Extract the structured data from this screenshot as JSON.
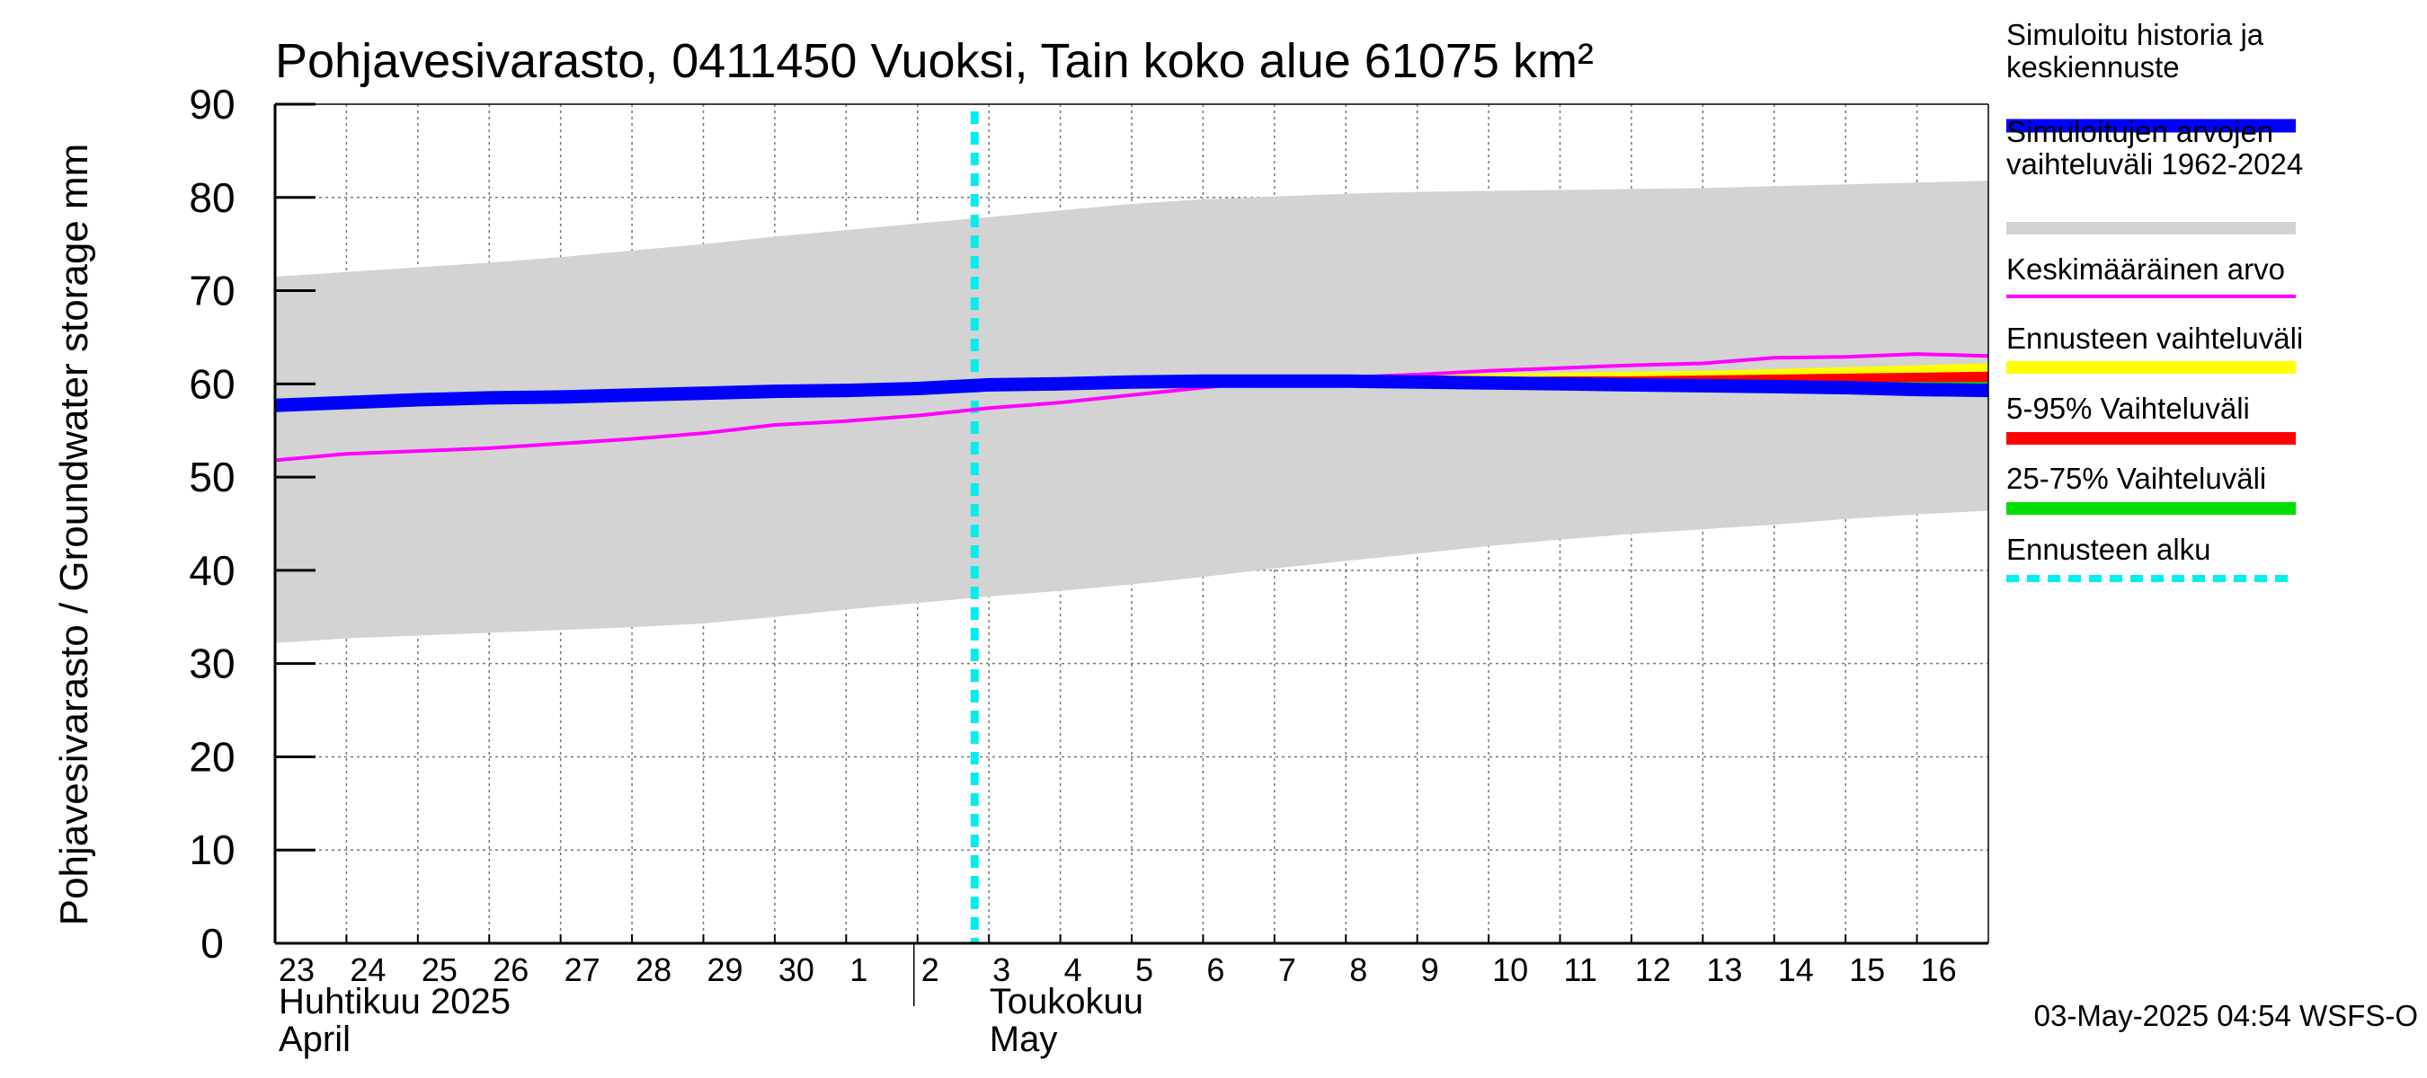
{
  "chart_data": {
    "type": "line",
    "title": "Pohjavesivarasto, 0411450 Vuoksi, Tain koko alue 61075 km²",
    "ylabel": "Pohjavesivarasto / Groundwater storage   mm",
    "ylim": [
      0,
      90
    ],
    "yticks": [
      "0",
      "10",
      "20",
      "30",
      "40",
      "50",
      "60",
      "70",
      "80",
      "90"
    ],
    "x_range": [
      "2025-04-23",
      "2025-05-17"
    ],
    "xtick_labels": [
      "23",
      "24",
      "25",
      "26",
      "27",
      "28",
      "29",
      "30",
      "1",
      "2",
      "3",
      "4",
      "5",
      "6",
      "7",
      "8",
      "9",
      "10",
      "11",
      "12",
      "13",
      "14",
      "15",
      "16"
    ],
    "month_labels": [
      {
        "line1": "Huhtikuu  2025",
        "line2": "April",
        "start": "2025-04-23"
      },
      {
        "line1": "Toukokuu",
        "line2": "May",
        "start": "2025-05-02"
      }
    ],
    "grid": true,
    "legend_position": "right",
    "forecast_start": "2025-05-03",
    "x": [
      "2025-04-23",
      "2025-04-24",
      "2025-04-25",
      "2025-04-26",
      "2025-04-27",
      "2025-04-28",
      "2025-04-29",
      "2025-04-30",
      "2025-05-01",
      "2025-05-02",
      "2025-05-03",
      "2025-05-04",
      "2025-05-05",
      "2025-05-06",
      "2025-05-07",
      "2025-05-08",
      "2025-05-09",
      "2025-05-10",
      "2025-05-11",
      "2025-05-12",
      "2025-05-13",
      "2025-05-14",
      "2025-05-15",
      "2025-05-16",
      "2025-05-17"
    ],
    "series": [
      {
        "name": "Simuloitujen arvojen vaihteluväli 1962-2024",
        "kind": "band",
        "color": "#d3d3d3",
        "lower": [
          32.2,
          32.7,
          33.0,
          33.3,
          33.6,
          33.9,
          34.3,
          35.0,
          35.8,
          36.5,
          37.2,
          37.8,
          38.5,
          39.3,
          40.2,
          41.0,
          41.8,
          42.6,
          43.3,
          43.9,
          44.4,
          44.9,
          45.5,
          46.0,
          46.4
        ],
        "upper": [
          71.5,
          72.0,
          72.5,
          73.0,
          73.6,
          74.3,
          75.0,
          75.8,
          76.5,
          77.2,
          77.9,
          78.6,
          79.3,
          79.8,
          80.1,
          80.4,
          80.6,
          80.7,
          80.8,
          80.9,
          81.0,
          81.2,
          81.4,
          81.6,
          81.8
        ]
      },
      {
        "name": "Ennusteen vaihteluväli",
        "kind": "band",
        "color": "#ffff00",
        "start": "2025-05-03",
        "lower": [
          59.9,
          60.0,
          60.1,
          60.2,
          60.3,
          60.2,
          60.1,
          60.0,
          59.9,
          59.8,
          59.7,
          59.6,
          59.5,
          59.4,
          59.3
        ],
        "upper": [
          59.9,
          60.1,
          60.3,
          60.5,
          60.7,
          60.9,
          61.0,
          61.1,
          61.2,
          61.3,
          61.4,
          61.6,
          61.8,
          62.0,
          62.2
        ]
      },
      {
        "name": "5-95% Vaihteluväli",
        "kind": "band",
        "color": "#ff0000",
        "start": "2025-05-03",
        "lower": [
          59.9,
          60.0,
          60.1,
          60.2,
          60.3,
          60.2,
          60.1,
          60.0,
          59.9,
          59.8,
          59.7,
          59.6,
          59.5,
          59.4,
          59.3
        ],
        "upper": [
          59.9,
          60.0,
          60.2,
          60.3,
          60.5,
          60.6,
          60.7,
          60.7,
          60.8,
          60.8,
          60.9,
          61.0,
          61.1,
          61.2,
          61.3
        ]
      },
      {
        "name": "25-75% Vaihteluväli",
        "kind": "band",
        "color": "#00dd00",
        "start": "2025-05-03",
        "lower": [
          59.9,
          60.0,
          60.1,
          60.2,
          60.3,
          60.2,
          60.1,
          60.0,
          59.9,
          59.8,
          59.7,
          59.6,
          59.5,
          59.4,
          59.3
        ],
        "upper": [
          59.9,
          60.0,
          60.1,
          60.2,
          60.3,
          60.3,
          60.3,
          60.3,
          60.2,
          60.2,
          60.2,
          60.2,
          60.2,
          60.2,
          60.2
        ]
      },
      {
        "name": "Keskimääräinen arvo",
        "kind": "line",
        "color": "#ff00ff",
        "values": [
          51.8,
          52.5,
          52.8,
          53.1,
          53.6,
          54.1,
          54.7,
          55.6,
          56.0,
          56.6,
          57.4,
          58.0,
          58.8,
          59.6,
          60.3,
          60.7,
          61.0,
          61.4,
          61.7,
          62.0,
          62.2,
          62.8,
          62.9,
          63.2,
          63.0
        ]
      },
      {
        "name": "Simuloitu historia ja keskiennuste",
        "kind": "line",
        "color": "#0000ff",
        "values": [
          57.7,
          58.0,
          58.3,
          58.5,
          58.6,
          58.8,
          59.0,
          59.2,
          59.3,
          59.5,
          59.9,
          60.0,
          60.2,
          60.3,
          60.3,
          60.3,
          60.2,
          60.1,
          60.0,
          59.9,
          59.8,
          59.7,
          59.6,
          59.4,
          59.3
        ]
      },
      {
        "name": "Ennusteen alku",
        "kind": "vline",
        "color": "#00eeee"
      }
    ]
  },
  "legend": [
    {
      "label": "Simuloitu historia ja\nkeskiennuste",
      "color": "#0000ff",
      "style": "thick"
    },
    {
      "label": "Simuloitujen arvojen\nvaihteluväli 1962-2024",
      "color": "#d3d3d3",
      "style": "medium"
    },
    {
      "label": "Keskimääräinen arvo",
      "color": "#ff00ff",
      "style": "thin"
    },
    {
      "label": "Ennusteen vaihteluväli",
      "color": "#ffff00",
      "style": "medium"
    },
    {
      "label": "5-95% Vaihteluväli",
      "color": "#ff0000",
      "style": "medium"
    },
    {
      "label": "25-75% Vaihteluväli",
      "color": "#00dd00",
      "style": "medium"
    },
    {
      "label": "Ennusteen alku",
      "color": "#00eeee",
      "style": "dashed"
    }
  ],
  "footer": "03-May-2025 04:54 WSFS-O"
}
